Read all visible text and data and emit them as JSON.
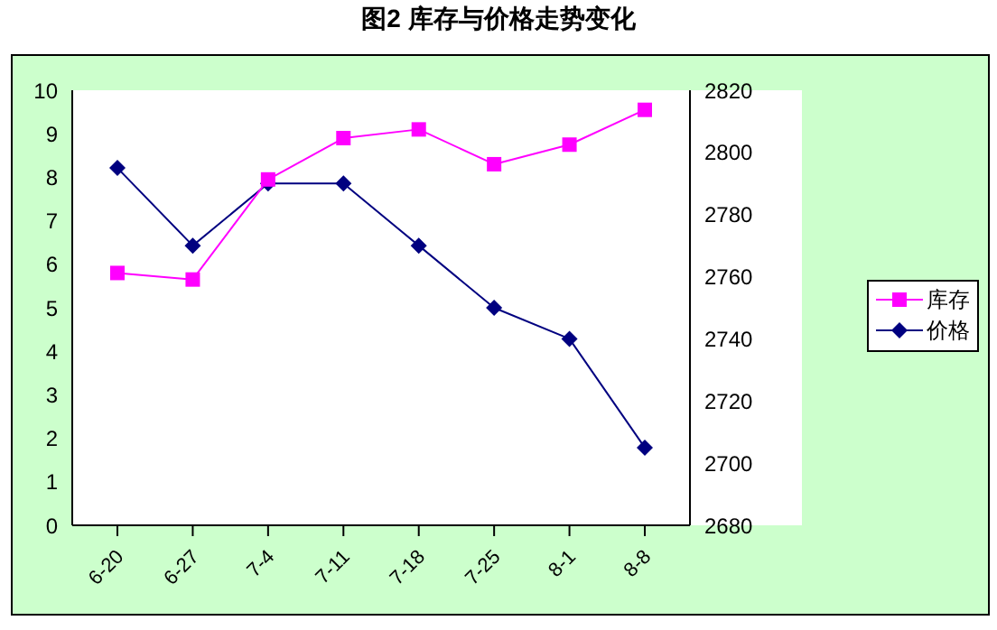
{
  "chart_data": {
    "type": "line",
    "title": "图2 库存与价格走势变化",
    "categories": [
      "6-20",
      "6-27",
      "7-4",
      "7-11",
      "7-18",
      "7-25",
      "8-1",
      "8-8"
    ],
    "series": [
      {
        "name": "库存",
        "color": "#ff00ff",
        "marker": "square",
        "values": [
          5.8,
          5.65,
          7.95,
          8.9,
          9.1,
          8.3,
          8.75,
          9.55
        ]
      },
      {
        "name": "价格",
        "color": "#000080",
        "marker": "diamond",
        "axis": "y2",
        "values": [
          2795,
          2770,
          2790,
          2790,
          2770,
          2750,
          2740,
          2705
        ]
      }
    ],
    "ylim": [
      0,
      10
    ],
    "yticks": [
      0,
      1,
      2,
      3,
      4,
      5,
      6,
      7,
      8,
      9,
      10
    ],
    "y2lim": [
      2680,
      2820
    ],
    "y2ticks": [
      2680,
      2700,
      2720,
      2740,
      2760,
      2780,
      2800,
      2820
    ],
    "legend": "right"
  }
}
